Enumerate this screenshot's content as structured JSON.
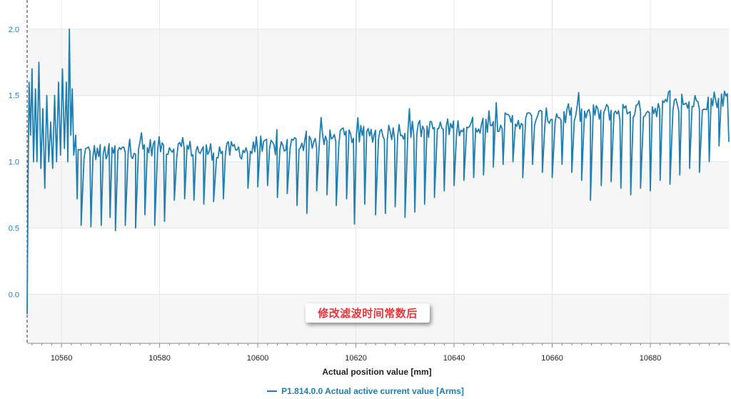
{
  "chart_data": {
    "type": "line",
    "xlabel": "Actual position value [mm]",
    "ylabel": "",
    "x_ticks": [
      10560,
      10580,
      10600,
      10620,
      10640,
      10660,
      10680
    ],
    "y_ticks": [
      0.0,
      0.5,
      1.0,
      1.5,
      2.0
    ],
    "x_tick_labels": [
      "10560",
      "10580",
      "10600",
      "10620",
      "10640",
      "10660",
      "10680"
    ],
    "y_tick_labels": [
      "0.0",
      "0.5",
      "1.0",
      "1.5",
      "2.0"
    ],
    "xlim": [
      10553.0,
      10696.0
    ],
    "ylim": [
      -0.37,
      2.22
    ],
    "grid": true,
    "legend_position": "bottom-center",
    "series": [
      {
        "name": "P1.814.0.0 Actual active current value [Arms]",
        "color": "#1f7fb0",
        "points": [
          [
            10553.0,
            -0.15
          ],
          [
            10553.2,
            0.9
          ],
          [
            10553.4,
            1.6
          ],
          [
            10553.7,
            1.2
          ],
          [
            10554.0,
            1.7
          ],
          [
            10554.3,
            1.0
          ],
          [
            10554.7,
            1.55
          ],
          [
            10555.0,
            1.0
          ],
          [
            10555.4,
            1.75
          ],
          [
            10555.8,
            0.95
          ],
          [
            10556.2,
            1.4
          ],
          [
            10556.6,
            0.8
          ],
          [
            10557.0,
            1.5
          ],
          [
            10557.4,
            1.0
          ],
          [
            10557.8,
            1.3
          ],
          [
            10558.2,
            0.95
          ],
          [
            10558.6,
            1.5
          ],
          [
            10559.0,
            1.0
          ],
          [
            10559.4,
            1.6
          ],
          [
            10559.8,
            1.05
          ],
          [
            10560.2,
            1.7
          ],
          [
            10560.6,
            1.1
          ],
          [
            10561.0,
            1.6
          ],
          [
            10561.3,
            1.0
          ],
          [
            10561.6,
            2.0
          ],
          [
            10561.9,
            1.2
          ],
          [
            10562.2,
            1.55
          ],
          [
            10562.5,
            1.05
          ],
          [
            10562.9,
            1.2
          ],
          [
            10563.2,
            0.72
          ]
        ],
        "trend": [
          [
            10563,
            1.07
          ],
          [
            10570,
            1.07
          ],
          [
            10580,
            1.12
          ],
          [
            10590,
            1.08
          ],
          [
            10600,
            1.09
          ],
          [
            10610,
            1.15
          ],
          [
            10620,
            1.2
          ],
          [
            10630,
            1.24
          ],
          [
            10640,
            1.26
          ],
          [
            10650,
            1.3
          ],
          [
            10660,
            1.34
          ],
          [
            10670,
            1.37
          ],
          [
            10680,
            1.4
          ],
          [
            10690,
            1.45
          ],
          [
            10696,
            1.49
          ]
        ],
        "noise_amplitude": 0.07,
        "sample_step_mm": 0.3,
        "dip_positions": [
          [
            10564.0,
            0.52
          ],
          [
            10566.0,
            0.51
          ],
          [
            10568.1,
            0.52
          ],
          [
            10569.9,
            0.58
          ],
          [
            10571.0,
            0.48
          ],
          [
            10573.0,
            0.52
          ],
          [
            10575.1,
            0.5
          ],
          [
            10577.0,
            0.6
          ],
          [
            10579.0,
            0.52
          ],
          [
            10581.0,
            0.55
          ],
          [
            10583.0,
            0.71
          ],
          [
            10585.1,
            0.72
          ],
          [
            10587.0,
            0.71
          ],
          [
            10589.0,
            0.68
          ],
          [
            10591.0,
            0.7
          ],
          [
            10593.0,
            0.72
          ],
          [
            10598.0,
            0.8
          ],
          [
            10600.0,
            0.81
          ],
          [
            10602.0,
            0.82
          ],
          [
            10604.0,
            0.73
          ],
          [
            10606.0,
            0.76
          ],
          [
            10608.0,
            0.67
          ],
          [
            10610.0,
            0.61
          ],
          [
            10612.0,
            0.78
          ],
          [
            10614.1,
            0.75
          ],
          [
            10616.0,
            0.67
          ],
          [
            10618.1,
            0.72
          ],
          [
            10619.7,
            0.53
          ],
          [
            10621.8,
            0.68
          ],
          [
            10624.0,
            0.6
          ],
          [
            10626.0,
            0.61
          ],
          [
            10628.0,
            0.66
          ],
          [
            10630.0,
            0.58
          ],
          [
            10632.0,
            0.62
          ],
          [
            10634.0,
            0.68
          ],
          [
            10636.0,
            0.73
          ],
          [
            10638.0,
            0.78
          ],
          [
            10640.0,
            0.82
          ],
          [
            10642.0,
            0.86
          ],
          [
            10644.0,
            0.88
          ],
          [
            10646.0,
            0.9
          ],
          [
            10648.0,
            0.96
          ],
          [
            10650.0,
            0.98
          ],
          [
            10652.0,
            1.0
          ],
          [
            10654.0,
            0.88
          ],
          [
            10656.0,
            0.98
          ],
          [
            10658.0,
            0.92
          ],
          [
            10660.0,
            0.88
          ],
          [
            10662.0,
            0.98
          ],
          [
            10664.0,
            0.92
          ],
          [
            10666.0,
            0.86
          ],
          [
            10667.8,
            0.71
          ],
          [
            10670.0,
            0.82
          ],
          [
            10672.0,
            0.85
          ],
          [
            10674.0,
            0.8
          ],
          [
            10676.0,
            0.75
          ],
          [
            10678.0,
            0.8
          ],
          [
            10680.0,
            0.78
          ],
          [
            10682.0,
            0.86
          ],
          [
            10684.0,
            0.83
          ],
          [
            10686.0,
            0.9
          ],
          [
            10688.0,
            0.95
          ],
          [
            10690.0,
            0.92
          ],
          [
            10692.0,
            1.0
          ],
          [
            10694.0,
            1.12
          ]
        ],
        "end_point": [
          10696.0,
          1.15
        ]
      }
    ],
    "markers": [
      {
        "type": "vertical-dashed",
        "x": 10553.0
      }
    ]
  },
  "annotation": {
    "text": "修改滤波时间常数后"
  },
  "legend": {
    "label": "P1.814.0.0 Actual active current value [Arms]"
  }
}
